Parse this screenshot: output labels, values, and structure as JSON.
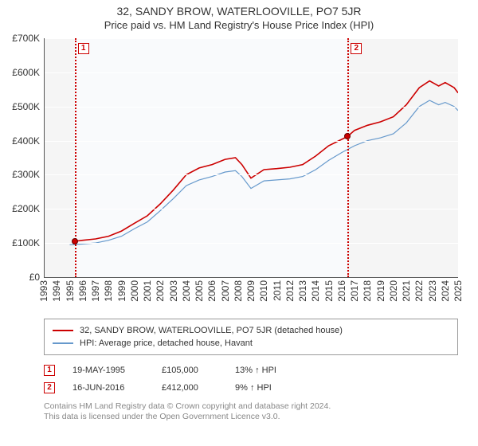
{
  "title": "32, SANDY BROW, WATERLOOVILLE, PO7 5JR",
  "subtitle": "Price paid vs. HM Land Registry's House Price Index (HPI)",
  "chart": {
    "type": "line",
    "background_color": "#f5f5f5",
    "plot_shade_color": "#f9fafc",
    "grid_color": "#ffffff",
    "ylabel_prefix": "£",
    "ylabel_suffix": "K",
    "ylim": [
      0,
      700000
    ],
    "ytick_step": 100000,
    "xlim": [
      1993,
      2025
    ],
    "xtick_step": 1,
    "series": [
      {
        "id": "property",
        "label": "32, SANDY BROW, WATERLOOVILLE, PO7 5JR (detached house)",
        "color": "#cc0000",
        "line_width": 1.6,
        "data": [
          [
            1995.38,
            105000
          ],
          [
            1996,
            108000
          ],
          [
            1997,
            112000
          ],
          [
            1998,
            120000
          ],
          [
            1999,
            135000
          ],
          [
            2000,
            158000
          ],
          [
            2001,
            180000
          ],
          [
            2002,
            215000
          ],
          [
            2003,
            255000
          ],
          [
            2004,
            300000
          ],
          [
            2005,
            320000
          ],
          [
            2006,
            330000
          ],
          [
            2007,
            345000
          ],
          [
            2007.8,
            350000
          ],
          [
            2008.3,
            330000
          ],
          [
            2009,
            290000
          ],
          [
            2010,
            315000
          ],
          [
            2011,
            318000
          ],
          [
            2012,
            322000
          ],
          [
            2013,
            330000
          ],
          [
            2014,
            355000
          ],
          [
            2015,
            385000
          ],
          [
            2016.46,
            412000
          ],
          [
            2017,
            430000
          ],
          [
            2018,
            445000
          ],
          [
            2019,
            455000
          ],
          [
            2020,
            470000
          ],
          [
            2021,
            505000
          ],
          [
            2022,
            555000
          ],
          [
            2022.8,
            575000
          ],
          [
            2023.5,
            560000
          ],
          [
            2024,
            570000
          ],
          [
            2024.7,
            555000
          ],
          [
            2025,
            540000
          ]
        ]
      },
      {
        "id": "hpi",
        "label": "HPI: Average price, detached house, Havant",
        "color": "#6699cc",
        "line_width": 1.2,
        "data": [
          [
            1995,
            95000
          ],
          [
            1996,
            97000
          ],
          [
            1997,
            100000
          ],
          [
            1998,
            108000
          ],
          [
            1999,
            120000
          ],
          [
            2000,
            142000
          ],
          [
            2001,
            162000
          ],
          [
            2002,
            195000
          ],
          [
            2003,
            230000
          ],
          [
            2004,
            268000
          ],
          [
            2005,
            285000
          ],
          [
            2006,
            295000
          ],
          [
            2007,
            308000
          ],
          [
            2007.8,
            312000
          ],
          [
            2008.3,
            295000
          ],
          [
            2009,
            260000
          ],
          [
            2010,
            282000
          ],
          [
            2011,
            285000
          ],
          [
            2012,
            288000
          ],
          [
            2013,
            295000
          ],
          [
            2014,
            315000
          ],
          [
            2015,
            342000
          ],
          [
            2016,
            365000
          ],
          [
            2017,
            385000
          ],
          [
            2018,
            400000
          ],
          [
            2019,
            408000
          ],
          [
            2020,
            420000
          ],
          [
            2021,
            452000
          ],
          [
            2022,
            500000
          ],
          [
            2022.8,
            518000
          ],
          [
            2023.5,
            505000
          ],
          [
            2024,
            512000
          ],
          [
            2024.7,
            500000
          ],
          [
            2025,
            488000
          ]
        ]
      }
    ],
    "sale_markers": [
      {
        "n": "1",
        "year": 1995.38,
        "value": 105000
      },
      {
        "n": "2",
        "year": 2016.46,
        "value": 412000
      }
    ]
  },
  "legend": {
    "items": [
      {
        "color": "#cc0000",
        "label": "32, SANDY BROW, WATERLOOVILLE, PO7 5JR (detached house)"
      },
      {
        "color": "#6699cc",
        "label": "HPI: Average price, detached house, Havant"
      }
    ]
  },
  "sales": [
    {
      "n": "1",
      "date": "19-MAY-1995",
      "price": "£105,000",
      "diff": "13% ↑ HPI"
    },
    {
      "n": "2",
      "date": "16-JUN-2016",
      "price": "£412,000",
      "diff": "9% ↑ HPI"
    }
  ],
  "footnote_line1": "Contains HM Land Registry data © Crown copyright and database right 2024.",
  "footnote_line2": "This data is licensed under the Open Government Licence v3.0."
}
